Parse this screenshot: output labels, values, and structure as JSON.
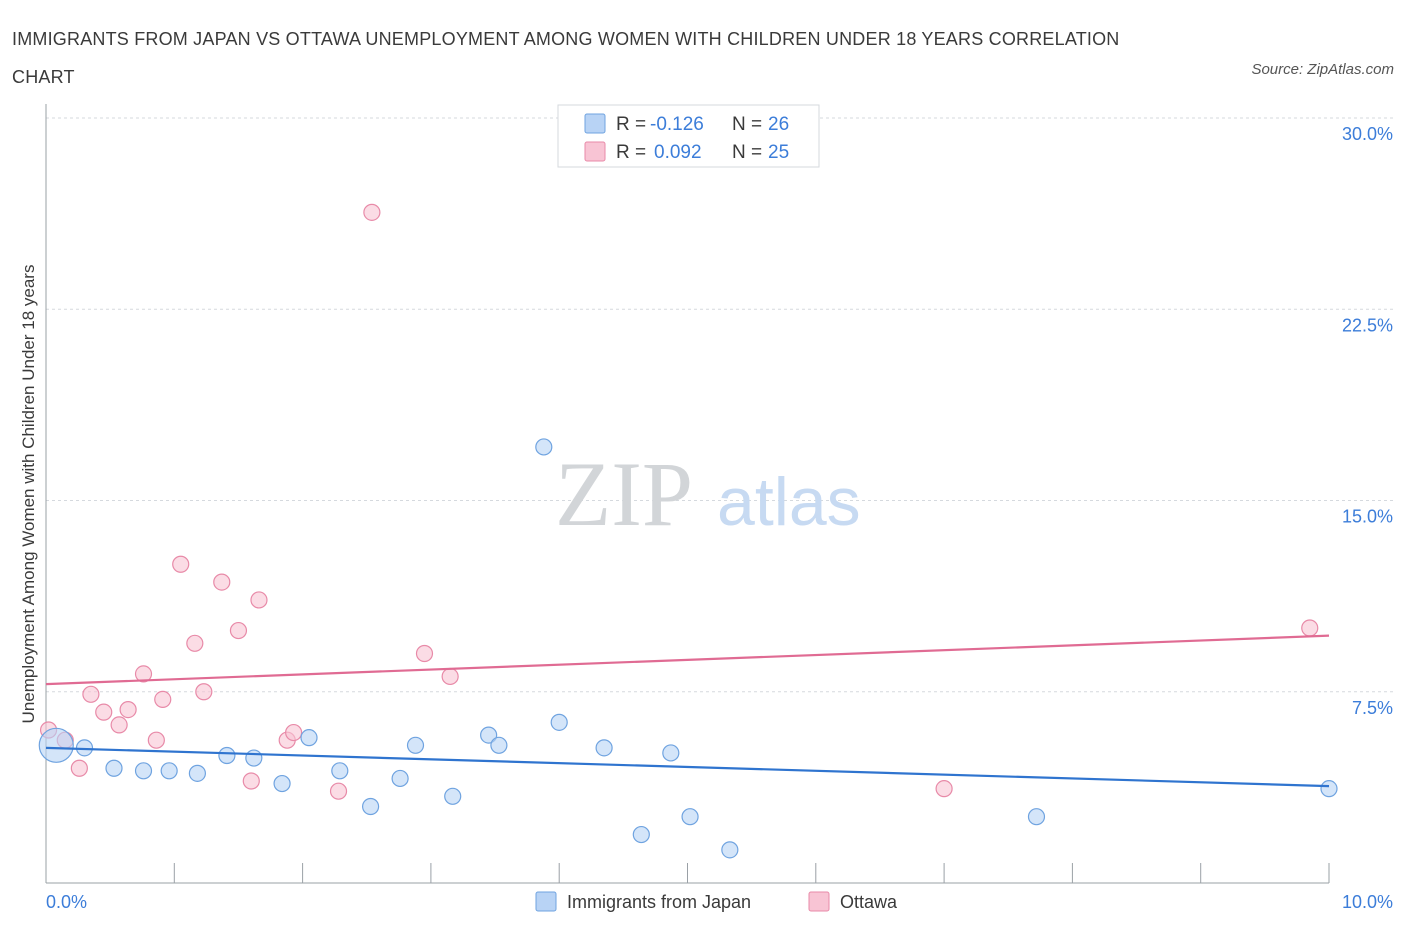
{
  "title": "IMMIGRANTS FROM JAPAN VS OTTAWA UNEMPLOYMENT AMONG WOMEN WITH CHILDREN UNDER 18 YEARS CORRELATION CHART",
  "source": "Source: ZipAtlas.com",
  "watermark": {
    "zip": "ZIP",
    "atlas": "atlas"
  },
  "colors": {
    "blue_fill": "#b8d3f5",
    "blue_stroke": "#6fa3e0",
    "blue_line": "#2f74cf",
    "pink_fill": "#f8c4d4",
    "pink_stroke": "#e88aa8",
    "pink_line": "#e06b93",
    "value_text": "#3c7dd9",
    "axis_text": "#3c7dd9",
    "grid": "#d5d9de"
  },
  "legend_top": {
    "rows": [
      {
        "r_label": "R =",
        "r_value": "-0.126",
        "n_label": "N =",
        "n_value": "26",
        "color": "#b8d3f5"
      },
      {
        "r_label": "R =",
        "r_value": "0.092",
        "n_label": "N =",
        "n_value": "25",
        "color": "#f8c4d4"
      }
    ]
  },
  "chart_data": {
    "type": "scatter",
    "ylabel": "Unemployment Among Women with Children Under 18 years",
    "xlim": [
      0,
      10
    ],
    "ylim": [
      0,
      30
    ],
    "x_tick_labels": [
      "0.0%",
      "10.0%"
    ],
    "y_ticks": [
      7.5,
      15.0,
      22.5,
      30.0
    ],
    "y_tick_labels": [
      "7.5%",
      "15.0%",
      "22.5%",
      "30.0%"
    ],
    "grid": true,
    "series": [
      {
        "name": "Immigrants from Japan",
        "color": "#b8d3f5",
        "trend": {
          "x": [
            0.0,
            10.0
          ],
          "y": [
            5.3,
            3.8
          ]
        },
        "points": [
          {
            "x": 0.08,
            "y": 5.4,
            "big": true
          },
          {
            "x": 0.3,
            "y": 5.3
          },
          {
            "x": 0.53,
            "y": 4.5
          },
          {
            "x": 0.76,
            "y": 4.4
          },
          {
            "x": 0.96,
            "y": 4.4
          },
          {
            "x": 1.18,
            "y": 4.3
          },
          {
            "x": 1.41,
            "y": 5.0
          },
          {
            "x": 1.62,
            "y": 4.9
          },
          {
            "x": 1.84,
            "y": 3.9
          },
          {
            "x": 2.05,
            "y": 5.7
          },
          {
            "x": 2.29,
            "y": 4.4
          },
          {
            "x": 2.53,
            "y": 3.0
          },
          {
            "x": 2.76,
            "y": 4.1
          },
          {
            "x": 2.88,
            "y": 5.4
          },
          {
            "x": 3.17,
            "y": 3.4
          },
          {
            "x": 3.45,
            "y": 5.8
          },
          {
            "x": 3.53,
            "y": 5.4
          },
          {
            "x": 3.88,
            "y": 17.1
          },
          {
            "x": 4.0,
            "y": 6.3
          },
          {
            "x": 4.35,
            "y": 5.3
          },
          {
            "x": 4.64,
            "y": 1.9
          },
          {
            "x": 4.87,
            "y": 5.1
          },
          {
            "x": 5.02,
            "y": 2.6
          },
          {
            "x": 5.33,
            "y": 1.3
          },
          {
            "x": 7.72,
            "y": 2.6
          },
          {
            "x": 10.0,
            "y": 3.7
          }
        ]
      },
      {
        "name": "Ottawa",
        "color": "#f8c4d4",
        "trend": {
          "x": [
            0.0,
            10.0
          ],
          "y": [
            7.8,
            9.7
          ]
        },
        "points": [
          {
            "x": 0.02,
            "y": 6.0
          },
          {
            "x": 0.15,
            "y": 5.6
          },
          {
            "x": 0.26,
            "y": 4.5
          },
          {
            "x": 0.35,
            "y": 7.4
          },
          {
            "x": 0.45,
            "y": 6.7
          },
          {
            "x": 0.57,
            "y": 6.2
          },
          {
            "x": 0.64,
            "y": 6.8
          },
          {
            "x": 0.76,
            "y": 8.2
          },
          {
            "x": 0.86,
            "y": 5.6
          },
          {
            "x": 0.91,
            "y": 7.2
          },
          {
            "x": 1.05,
            "y": 12.5
          },
          {
            "x": 1.16,
            "y": 9.4
          },
          {
            "x": 1.23,
            "y": 7.5
          },
          {
            "x": 1.37,
            "y": 11.8
          },
          {
            "x": 1.5,
            "y": 9.9
          },
          {
            "x": 1.6,
            "y": 4.0
          },
          {
            "x": 1.66,
            "y": 11.1
          },
          {
            "x": 1.88,
            "y": 5.6
          },
          {
            "x": 1.93,
            "y": 5.9
          },
          {
            "x": 2.28,
            "y": 3.6
          },
          {
            "x": 2.54,
            "y": 26.3
          },
          {
            "x": 2.95,
            "y": 9.0
          },
          {
            "x": 3.15,
            "y": 8.1
          },
          {
            "x": 7.0,
            "y": 3.7
          },
          {
            "x": 9.85,
            "y": 10.0
          }
        ]
      }
    ]
  }
}
